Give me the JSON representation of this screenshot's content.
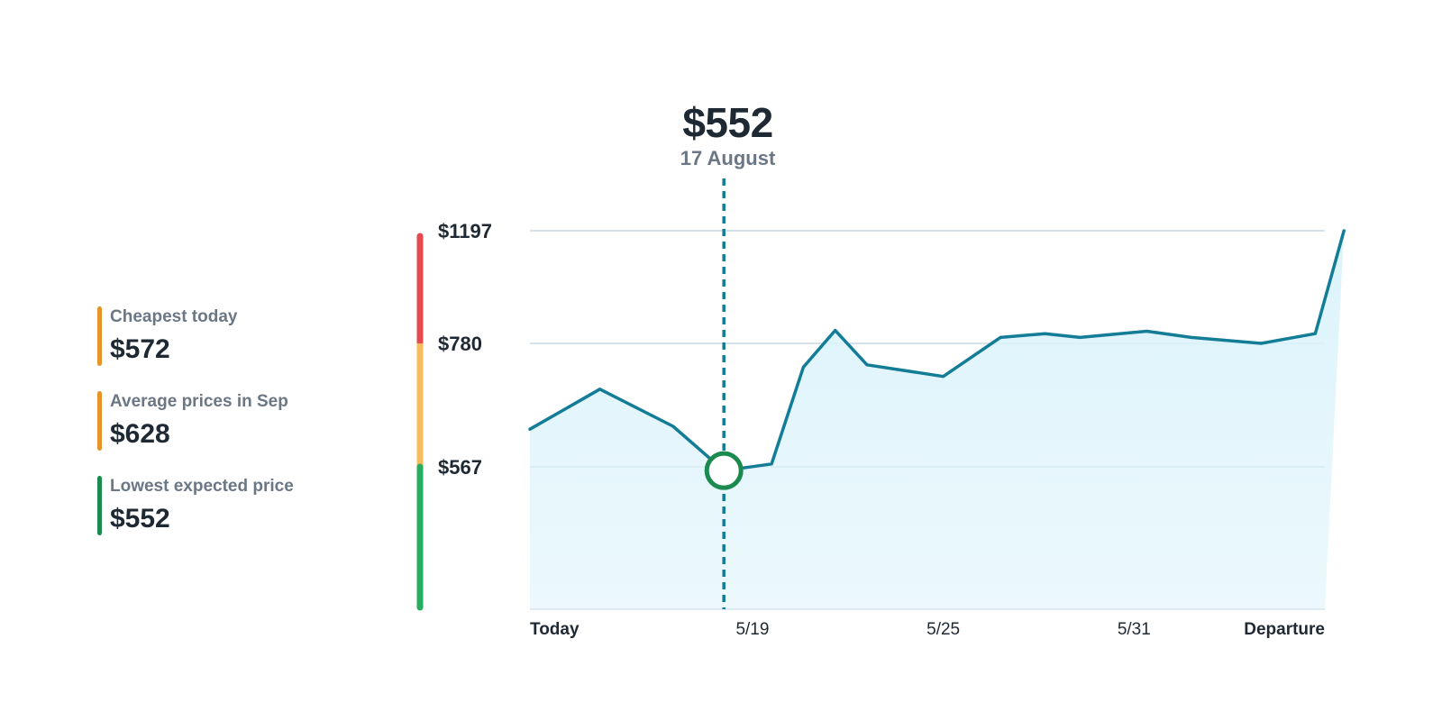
{
  "stats": [
    {
      "label": "Cheapest today",
      "value": "$572",
      "color": "#e8932a"
    },
    {
      "label": "Average prices in Sep",
      "value": "$628",
      "color": "#e8932a"
    },
    {
      "label": "Lowest expected price",
      "value": "$552",
      "color": "#1b8a4e"
    }
  ],
  "tooltip": {
    "price": "$552",
    "date": "17 August"
  },
  "scale": {
    "colors": {
      "high": "#e5484d",
      "mid": "#fbbd5c",
      "low": "#27ae60"
    }
  },
  "chart_data": {
    "type": "area",
    "title": "",
    "xlabel": "",
    "ylabel": "",
    "ylim": [
      0,
      1197
    ],
    "yticks": [
      {
        "value": 1197,
        "label": "$1197"
      },
      {
        "value": 780,
        "label": "$780"
      },
      {
        "value": 567,
        "label": "$567"
      }
    ],
    "xticks": [
      {
        "index": 0,
        "label": "Today",
        "bold": true
      },
      {
        "index": 7,
        "label": "5/19",
        "bold": false
      },
      {
        "index": 13,
        "label": "5/25",
        "bold": false
      },
      {
        "index": 19,
        "label": "5/31",
        "bold": false
      },
      {
        "index": 25,
        "label": "Departure",
        "bold": true
      }
    ],
    "series": [
      {
        "line_color": "#137c96",
        "fill_color": "#dcf3fb",
        "values": [
          632,
          701,
          637,
          552,
          572,
          739,
          828,
          743,
          723,
          802,
          816,
          802,
          825,
          802,
          780,
          816,
          1197
        ]
      }
    ],
    "point_index": [
      0,
      2.2,
      4.5,
      6.1,
      7.6,
      8.6,
      9.6,
      10.6,
      13.0,
      14.8,
      16.2,
      17.3,
      19.4,
      20.8,
      23.0,
      24.7,
      25.6
    ],
    "highlight": {
      "index": 6.1,
      "value": 552,
      "color": "#1b8a4e"
    },
    "grid": true,
    "legend": "none"
  }
}
